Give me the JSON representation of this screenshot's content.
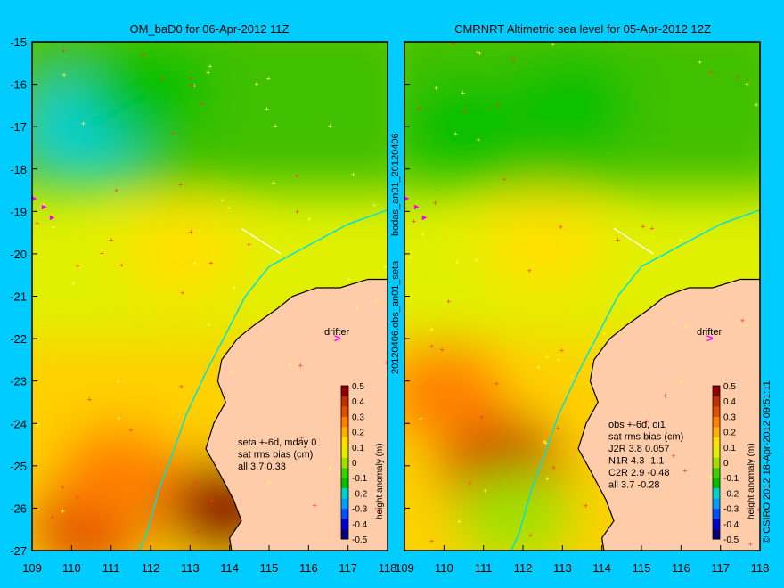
{
  "chart_data": [
    {
      "type": "heatmap",
      "title": "OM_baD0 for 06-Apr-2012 11Z",
      "xlim": [
        109,
        118
      ],
      "ylim": [
        -27,
        -15
      ],
      "x_ticks": [
        "109",
        "110",
        "111",
        "112",
        "113",
        "114",
        "115",
        "116",
        "117",
        "118"
      ],
      "y_ticks": [
        "-15",
        "-16",
        "-17",
        "-18",
        "-19",
        "-20",
        "-21",
        "-22",
        "-23",
        "-24",
        "-25",
        "-26",
        "-27"
      ],
      "annotation_lines": [
        "seta +-6d, mday 0",
        "sat rms bias (cm)",
        "all 3.7 0.33"
      ],
      "drifter_label": "drifter",
      "drifter": {
        "x": 116.6,
        "y": -22.0
      },
      "features": [
        {
          "kind": "high",
          "x": 110.4,
          "y": -17.0,
          "level": -0.18
        },
        {
          "kind": "high",
          "x": 112.0,
          "y": -16.2,
          "level": -0.12
        },
        {
          "kind": "low",
          "x": 112.8,
          "y": -20.0,
          "level": 0.12
        },
        {
          "kind": "low",
          "x": 110.4,
          "y": -26.5,
          "level": 0.35
        },
        {
          "kind": "low",
          "x": 113.9,
          "y": -26.0,
          "level": 0.45
        },
        {
          "kind": "low",
          "x": 111.2,
          "y": -25.2,
          "level": 0.25
        }
      ]
    },
    {
      "type": "heatmap",
      "title": "CMRNRT Altimetric sea level  for 05-Apr-2012 12Z",
      "xlim": [
        109,
        118
      ],
      "ylim": [
        -27,
        -15
      ],
      "x_ticks": [
        "109",
        "110",
        "111",
        "112",
        "113",
        "114",
        "115",
        "116",
        "117",
        "118"
      ],
      "y_ticks": [
        "-15",
        "-16",
        "-17",
        "-18",
        "-19",
        "-20",
        "-21",
        "-22",
        "-23",
        "-24",
        "-25",
        "-26",
        "-27"
      ],
      "annotation_lines": [
        "obs +-6d, oi1",
        "sat rms bias (cm)",
        "J2R   3.8 0.057",
        "N1R   4.3 -1.1",
        "C2R   2.9 -0.48",
        "all 3.7 -0.28"
      ],
      "drifter_label": "drifter",
      "drifter": {
        "x": 116.6,
        "y": -22.0
      },
      "features": [
        {
          "kind": "high",
          "x": 110.5,
          "y": -17.0,
          "level": -0.15
        },
        {
          "kind": "high",
          "x": 113.2,
          "y": -16.5,
          "level": -0.12
        },
        {
          "kind": "low",
          "x": 112.5,
          "y": -19.8,
          "level": 0.15
        },
        {
          "kind": "low",
          "x": 111.5,
          "y": -25.0,
          "level": 0.4
        },
        {
          "kind": "low",
          "x": 110.0,
          "y": -23.3,
          "level": 0.25
        },
        {
          "kind": "high",
          "x": 111.8,
          "y": -26.2,
          "level": 0.0
        }
      ]
    }
  ],
  "colorbar": {
    "label": "height anomaly (m)",
    "ticks": [
      "0.5",
      "0.4",
      "0.3",
      "0.2",
      "0.1",
      "0",
      "-0.1",
      "-0.2",
      "-0.3",
      "-0.4",
      "-0.5"
    ],
    "colors": [
      "#000080",
      "#0000d0",
      "#0050ff",
      "#00a0ff",
      "#00d0d0",
      "#00c000",
      "#40d000",
      "#a0e000",
      "#e0f000",
      "#ffe000",
      "#ffb000",
      "#ff8000",
      "#e05000",
      "#c03000",
      "#900000"
    ]
  },
  "side_labels": {
    "middle": "20120406.obs_an01_seta",
    "middle_top": "bodas_an01_20120406",
    "right": "© CSIRO 2012   18-Apr-2012 09:51:11"
  },
  "colors": {
    "background": "#00ccff",
    "land": "#ffccaa",
    "coast": "#000000",
    "track": "#00e0e0",
    "drifter": "#ff00ff"
  }
}
